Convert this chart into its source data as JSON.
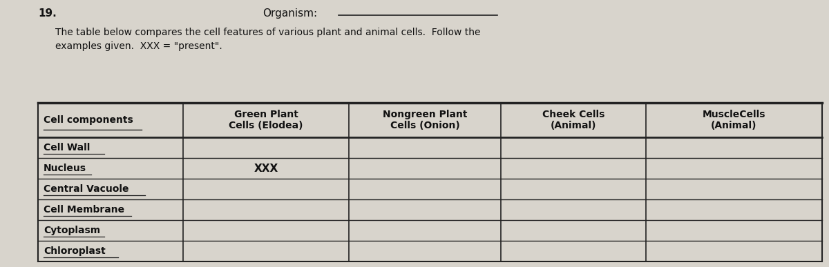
{
  "title_number": "19.",
  "organism_label": "Organism:",
  "description": "The table below compares the cell features of various plant and animal cells.  Follow the\nexamples given.  XXX = \"present\".",
  "col_headers": [
    "Cell components",
    "Green Plant\nCells (Elodea)",
    "Nongreen Plant\nCells (Onion)",
    "Cheek Cells\n(Animal)",
    "MuscleCells\n(Animal)"
  ],
  "row_labels": [
    "Cell Wall",
    "Nucleus",
    "Central Vacuole",
    "Cell Membrane",
    "Cytoplasm",
    "Chloroplast"
  ],
  "cell_data": {
    "1_1": "XXX"
  },
  "bg_color": "#d8d4cc",
  "line_color": "#222222",
  "text_color": "#111111",
  "font_size_body": 10,
  "font_size_header": 10,
  "font_size_title": 11
}
